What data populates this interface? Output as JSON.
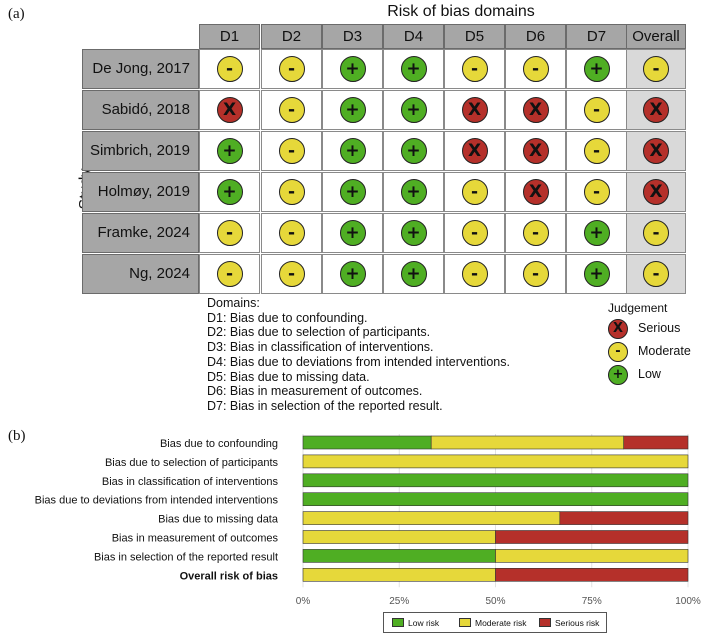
{
  "panel_a_label": "(a)",
  "panel_b_label": "(b)",
  "rob_title": "Risk of bias domains",
  "study_axis": "Study",
  "columns": [
    "D1",
    "D2",
    "D3",
    "D4",
    "D5",
    "D6",
    "D7",
    "Overall"
  ],
  "rows": [
    {
      "study": "De Jong, 2017",
      "j": [
        "moderate",
        "moderate",
        "low",
        "low",
        "moderate",
        "moderate",
        "low",
        "moderate"
      ]
    },
    {
      "study": "Sabidó, 2018",
      "j": [
        "serious",
        "moderate",
        "low",
        "low",
        "serious",
        "serious",
        "moderate",
        "serious"
      ]
    },
    {
      "study": "Simbrich, 2019",
      "j": [
        "low",
        "moderate",
        "low",
        "low",
        "serious",
        "serious",
        "moderate",
        "serious"
      ]
    },
    {
      "study": "Holmøy, 2019",
      "j": [
        "low",
        "moderate",
        "low",
        "low",
        "moderate",
        "serious",
        "moderate",
        "serious"
      ]
    },
    {
      "study": "Framke, 2024",
      "j": [
        "moderate",
        "moderate",
        "low",
        "low",
        "moderate",
        "moderate",
        "low",
        "moderate"
      ]
    },
    {
      "study": "Ng, 2024",
      "j": [
        "moderate",
        "moderate",
        "low",
        "low",
        "moderate",
        "moderate",
        "low",
        "moderate"
      ]
    }
  ],
  "symbols": {
    "low": "+",
    "moderate": "-",
    "serious": "X"
  },
  "colors": {
    "low": "#4fae23",
    "moderate": "#e6d83a",
    "serious": "#b5302a"
  },
  "domains_title": "Domains:",
  "domains": [
    "D1: Bias due to confounding.",
    "D2: Bias due to selection of participants.",
    "D3: Bias in classification of interventions.",
    "D4: Bias due to deviations from intended interventions.",
    "D5: Bias due to missing data.",
    "D6: Bias in measurement of outcomes.",
    "D7: Bias in selection of the reported result."
  ],
  "judgement_title": "Judgement",
  "judgement_legend": [
    "Serious",
    "Moderate",
    "Low"
  ],
  "chart_data": {
    "type": "bar",
    "orientation": "horizontal-stacked-100",
    "categories": [
      "Bias due to confounding",
      "Bias due to selection of participants",
      "Bias in classification of interventions",
      "Bias due to deviations from intended interventions",
      "Bias due to missing data",
      "Bias in measurement of outcomes",
      "Bias in selection of the reported result",
      "Overall risk of bias"
    ],
    "series": [
      {
        "name": "Low risk",
        "values": [
          33.3,
          0,
          100,
          100,
          0,
          0,
          50,
          0
        ]
      },
      {
        "name": "Moderate risk",
        "values": [
          50,
          100,
          0,
          0,
          66.7,
          50,
          50,
          50
        ]
      },
      {
        "name": "Serious risk",
        "values": [
          16.7,
          0,
          0,
          0,
          33.3,
          50,
          0,
          50
        ]
      }
    ],
    "x_ticks": [
      "0%",
      "25%",
      "50%",
      "75%",
      "100%"
    ],
    "xlim": [
      0,
      100
    ],
    "legend_position": "bottom"
  }
}
